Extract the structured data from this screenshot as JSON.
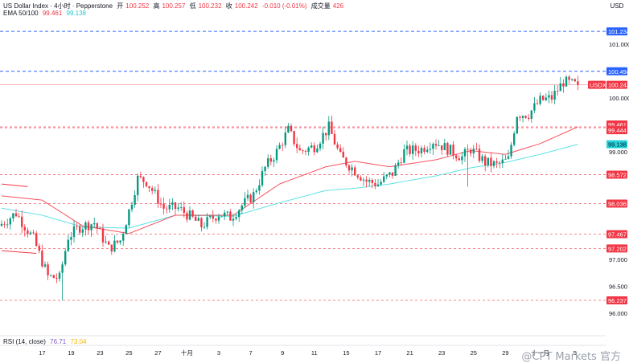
{
  "header": {
    "symbol": "US Dollar Index · 4小时 · Pepperstone",
    "open_label": "开",
    "open": "100.252",
    "high_label": "高",
    "high": "100.257",
    "low_label": "低",
    "low": "100.232",
    "close_label": "收",
    "close": "100.242",
    "change": "-0.010 (-0.01%)",
    "volume_label": "成交量",
    "volume": "426",
    "ema_label": "EMA 50/100",
    "ema50": "99.461",
    "ema100": "99.138"
  },
  "rsi": {
    "label": "RSI (14, close)",
    "value": "76.71",
    "value2": "73.04"
  },
  "watermark": "@CPT Markets 官方",
  "colors": {
    "up": "#089981",
    "down": "#f23645",
    "ema50": "#f7525f",
    "ema100": "#5ee1e6",
    "blue_line": "#2962ff",
    "red_line": "#f23645"
  },
  "chart_data": {
    "type": "candlestick",
    "currency": "USD",
    "ylim": [
      95.7,
      101.55
    ],
    "y_ticks": [
      "101.000",
      "100.000",
      "99.500",
      "99.000",
      "97.000",
      "96.500",
      "96.000"
    ],
    "x_ticks": [
      "17",
      "19",
      "23",
      "25",
      "27",
      "十月",
      "3",
      "7",
      "9",
      "11",
      "15",
      "17",
      "21",
      "23",
      "25",
      "29",
      "十一月",
      "5"
    ],
    "x_tick_index": [
      14,
      24,
      34,
      44,
      54,
      64,
      75,
      86,
      97,
      108,
      119,
      130,
      141,
      152,
      163,
      174,
      186,
      198
    ],
    "candle_count": 200,
    "anchors": [
      [
        0,
        97.62
      ],
      [
        6,
        97.86
      ],
      [
        12,
        97.38
      ],
      [
        17,
        96.68
      ],
      [
        21,
        96.65
      ],
      [
        24,
        97.42
      ],
      [
        28,
        97.6
      ],
      [
        33,
        97.68
      ],
      [
        38,
        97.2
      ],
      [
        42,
        97.35
      ],
      [
        45,
        97.9
      ],
      [
        48,
        98.5
      ],
      [
        51,
        98.45
      ],
      [
        57,
        97.95
      ],
      [
        62,
        97.95
      ],
      [
        66,
        97.8
      ],
      [
        70,
        97.62
      ],
      [
        76,
        97.85
      ],
      [
        80,
        97.78
      ],
      [
        84,
        98.0
      ],
      [
        88,
        98.2
      ],
      [
        92,
        98.7
      ],
      [
        96,
        99.0
      ],
      [
        100,
        99.4
      ],
      [
        104,
        99.0
      ],
      [
        109,
        99.1
      ],
      [
        114,
        99.45
      ],
      [
        118,
        98.9
      ],
      [
        122,
        98.7
      ],
      [
        127,
        98.45
      ],
      [
        131,
        98.4
      ],
      [
        136,
        98.6
      ],
      [
        140,
        99.0
      ],
      [
        146,
        99.05
      ],
      [
        150,
        99.2
      ],
      [
        155,
        99.05
      ],
      [
        160,
        98.9
      ],
      [
        163,
        99.05
      ],
      [
        168,
        98.8
      ],
      [
        172,
        98.75
      ],
      [
        176,
        98.85
      ],
      [
        179,
        99.7
      ],
      [
        183,
        99.7
      ],
      [
        187,
        99.95
      ],
      [
        191,
        100.0
      ],
      [
        195,
        100.3
      ],
      [
        199,
        100.242
      ]
    ],
    "ema50": [
      [
        0,
        98.18
      ],
      [
        14,
        98.1
      ],
      [
        28,
        97.62
      ],
      [
        44,
        97.48
      ],
      [
        60,
        97.82
      ],
      [
        80,
        97.82
      ],
      [
        96,
        98.4
      ],
      [
        112,
        98.72
      ],
      [
        122,
        98.82
      ],
      [
        134,
        98.72
      ],
      [
        150,
        98.85
      ],
      [
        162,
        99.02
      ],
      [
        174,
        98.95
      ],
      [
        186,
        99.15
      ],
      [
        199,
        99.461
      ]
    ],
    "ema100": [
      [
        0,
        97.95
      ],
      [
        14,
        97.82
      ],
      [
        28,
        97.6
      ],
      [
        44,
        97.58
      ],
      [
        60,
        97.82
      ],
      [
        80,
        97.8
      ],
      [
        96,
        98.05
      ],
      [
        112,
        98.28
      ],
      [
        122,
        98.32
      ],
      [
        134,
        98.4
      ],
      [
        150,
        98.55
      ],
      [
        162,
        98.7
      ],
      [
        174,
        98.8
      ],
      [
        186,
        98.95
      ],
      [
        199,
        99.138
      ]
    ],
    "red_level_left": {
      "from": 0,
      "to": 9,
      "value": 98.4
    },
    "red_level_left2": {
      "from": 0,
      "to": 12,
      "value": 97.16
    },
    "price_levels": [
      {
        "value": 101.234,
        "style": "blue"
      },
      {
        "value": 100.494,
        "style": "blue"
      },
      {
        "value": 100.242,
        "style": "last",
        "tag": "USDX"
      },
      {
        "value": 99.461,
        "style": "red"
      },
      {
        "value": 99.444,
        "style": "red"
      },
      {
        "value": 99.138,
        "style": "cyan"
      },
      {
        "value": 98.572,
        "style": "red"
      },
      {
        "value": 98.036,
        "style": "red"
      },
      {
        "value": 97.467,
        "style": "red"
      },
      {
        "value": 97.202,
        "style": "red"
      },
      {
        "value": 96.237,
        "style": "red"
      }
    ]
  }
}
